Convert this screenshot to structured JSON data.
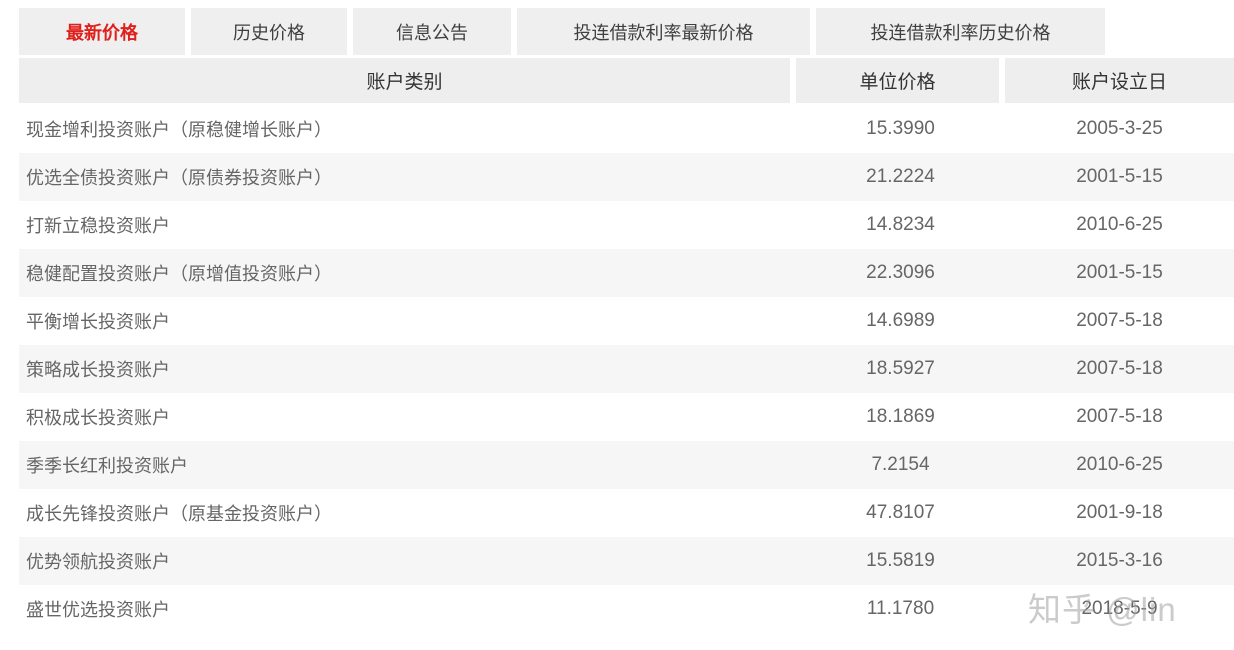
{
  "tabs": [
    {
      "label": "最新价格",
      "active": true
    },
    {
      "label": "历史价格",
      "active": false
    },
    {
      "label": "信息公告",
      "active": false
    },
    {
      "label": "投连借款利率最新价格",
      "active": false
    },
    {
      "label": "投连借款利率历史价格",
      "active": false
    }
  ],
  "colors": {
    "active_tab_text": "#e0201d",
    "tab_background": "#efefef",
    "header_background": "#eeeeee",
    "stripe_background": "#f6f6f7",
    "body_text": "#666666"
  },
  "table": {
    "columns": {
      "account": "账户类别",
      "price": "单位价格",
      "date": "账户设立日"
    },
    "rows": [
      {
        "account": "现金增利投资账户（原稳健增长账户）",
        "price": "15.3990",
        "date": "2005-3-25"
      },
      {
        "account": "优选全债投资账户（原债券投资账户）",
        "price": "21.2224",
        "date": "2001-5-15"
      },
      {
        "account": "打新立稳投资账户",
        "price": "14.8234",
        "date": "2010-6-25"
      },
      {
        "account": "稳健配置投资账户（原增值投资账户）",
        "price": "22.3096",
        "date": "2001-5-15"
      },
      {
        "account": "平衡增长投资账户",
        "price": "14.6989",
        "date": "2007-5-18"
      },
      {
        "account": "策略成长投资账户",
        "price": "18.5927",
        "date": "2007-5-18"
      },
      {
        "account": "积极成长投资账户",
        "price": "18.1869",
        "date": "2007-5-18"
      },
      {
        "account": "季季长红利投资账户",
        "price": "7.2154",
        "date": "2010-6-25"
      },
      {
        "account": "成长先锋投资账户（原基金投资账户）",
        "price": "47.8107",
        "date": "2001-9-18"
      },
      {
        "account": "优势领航投资账户",
        "price": "15.5819",
        "date": "2015-3-16"
      },
      {
        "account": "盛世优选投资账户",
        "price": "11.1780",
        "date": "2018-5-9"
      }
    ]
  },
  "watermark": "知乎 @lin"
}
